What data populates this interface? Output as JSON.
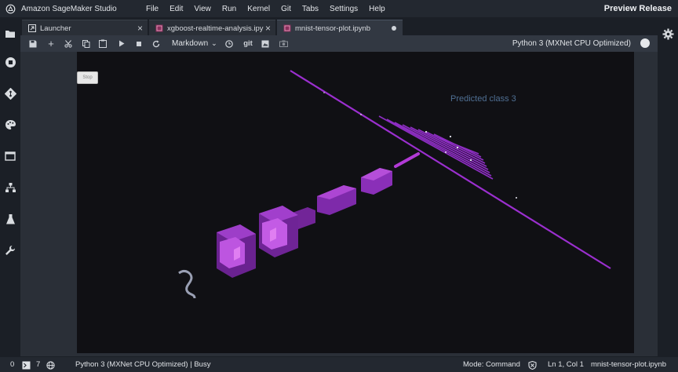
{
  "app": {
    "title": "Amazon SageMaker Studio",
    "release_label": "Preview Release"
  },
  "menu": [
    "File",
    "Edit",
    "View",
    "Run",
    "Kernel",
    "Git",
    "Tabs",
    "Settings",
    "Help"
  ],
  "tabs": [
    {
      "label": "Launcher",
      "icon": "launcher-icon"
    },
    {
      "label": "xgboost-realtime-analysis.ipy",
      "icon": "notebook-icon"
    },
    {
      "label": "mnist-tensor-plot.ipynb",
      "icon": "notebook-icon"
    }
  ],
  "toolbar": {
    "cell_type": "Markdown",
    "git_label": "git",
    "kernel_name": "Python 3 (MXNet CPU Optimized)"
  },
  "plot": {
    "stop_label": "Stop",
    "prediction_text": "Predicted class 3"
  },
  "status": {
    "count_zero": "0",
    "count_seven": "7",
    "kernel_status": "Python 3 (MXNet CPU Optimized) | Busy",
    "mode": "Mode: Command",
    "cursor": "Ln 1, Col 1",
    "file_name": "mnist-tensor-plot.ipynb"
  },
  "colors": {
    "accent_blue": "#7fb3f2",
    "tensor_magenta": "#b23ad6",
    "tensor_dark": "#6b1e8a",
    "prediction_text": "#4f6f93"
  }
}
